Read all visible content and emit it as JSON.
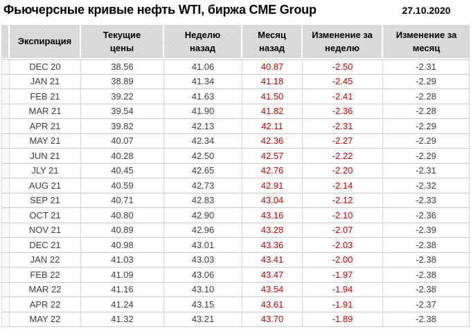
{
  "header": {
    "title": "Фьючерсные кривые нефть WTI, биржа CME Group",
    "date": "27.10.2020"
  },
  "chart_data": {
    "type": "table",
    "title": "Фьючерсные кривые нефть WTI, биржа CME Group",
    "date": "27.10.2020",
    "columns": [
      "Экспирация",
      "Текущие\nцены",
      "Неделю\nназад",
      "Месяц\nназад",
      "Изменение за\nнеделю",
      "Изменение за\nмесяц"
    ],
    "column_keys": [
      "expiration",
      "current-price",
      "week-ago",
      "month-ago",
      "week-change",
      "month-change"
    ],
    "negative_columns": [
      4,
      5
    ],
    "rows": [
      [
        "DEC 20",
        "38.56",
        "41.06",
        "40.87",
        "-2.50",
        "-2.31"
      ],
      [
        "JAN 21",
        "38.89",
        "41.34",
        "41.18",
        "-2.45",
        "-2.29"
      ],
      [
        "FEB 21",
        "39.22",
        "41.63",
        "41.50",
        "-2.41",
        "-2.28"
      ],
      [
        "MAR 21",
        "39.54",
        "41.90",
        "41.82",
        "-2.36",
        "-2.28"
      ],
      [
        "APR 21",
        "39.82",
        "42.13",
        "42.11",
        "-2.31",
        "-2.29"
      ],
      [
        "MAY 21",
        "40.07",
        "42.34",
        "42.36",
        "-2.27",
        "-2.29"
      ],
      [
        "JUN 21",
        "40.28",
        "42.50",
        "42.57",
        "-2.22",
        "-2.29"
      ],
      [
        "JLY 21",
        "40.45",
        "42.65",
        "42.76",
        "-2.20",
        "-2.31"
      ],
      [
        "AUG 21",
        "40.59",
        "42.73",
        "42.91",
        "-2.14",
        "-2.32"
      ],
      [
        "SEP 21",
        "40.71",
        "42.83",
        "43.04",
        "-2.12",
        "-2.33"
      ],
      [
        "OCT 21",
        "40.80",
        "42.90",
        "43.16",
        "-2.10",
        "-2.36"
      ],
      [
        "NOV 21",
        "40.89",
        "42.96",
        "43.28",
        "-2.07",
        "-2.39"
      ],
      [
        "DEC 21",
        "40.98",
        "43.01",
        "43.36",
        "-2.03",
        "-2.38"
      ],
      [
        "JAN 22",
        "41.03",
        "43.03",
        "43.41",
        "-2.00",
        "-2.38"
      ],
      [
        "FEB 22",
        "41.09",
        "43.06",
        "43.47",
        "-1.97",
        "-2.38"
      ],
      [
        "MAR 22",
        "41.16",
        "43.10",
        "43.54",
        "-1.94",
        "-2.38"
      ],
      [
        "APR 22",
        "41.24",
        "43.15",
        "43.61",
        "-1.91",
        "-2.37"
      ],
      [
        "MAY 22",
        "41.32",
        "43.21",
        "43.70",
        "-1.89",
        "-2.38"
      ]
    ],
    "colors": {
      "negative_value": "#cc0000",
      "header_background": "#d8d8d8",
      "grid_border": "#c9c9c9",
      "text": "#3c3c3c"
    },
    "grid": true,
    "legend_position": "none"
  }
}
